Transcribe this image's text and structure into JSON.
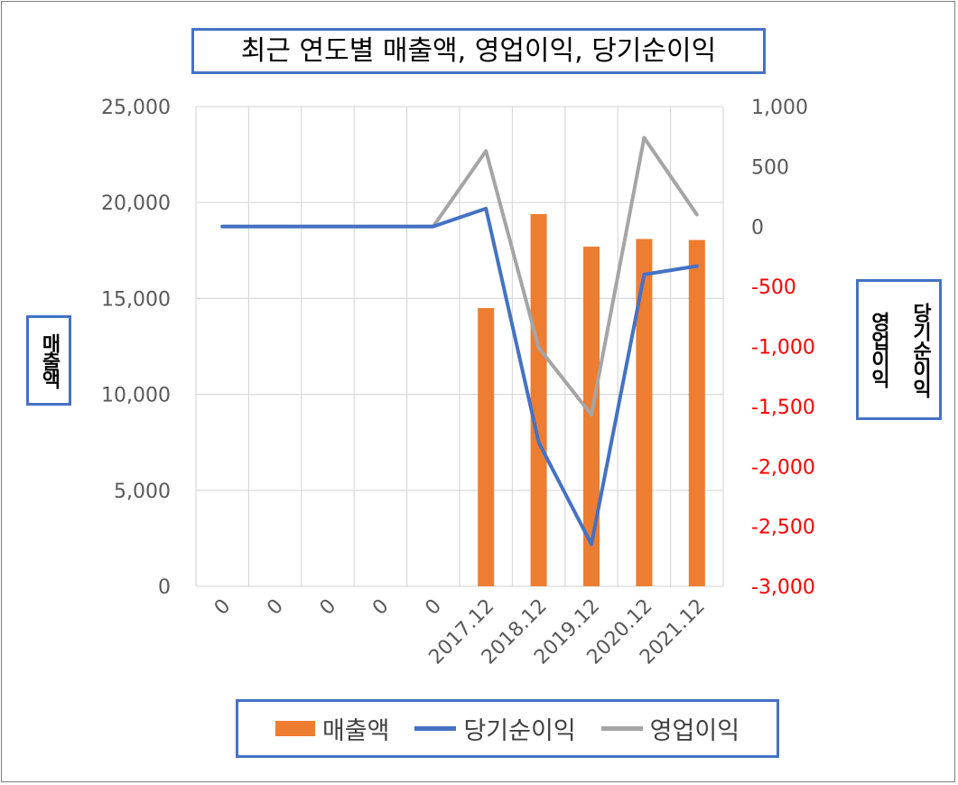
{
  "chart_data": {
    "type": "bar+line",
    "title": "최근 연도별 매출액, 영업이익, 당기순이익",
    "categories": [
      "0",
      "0",
      "0",
      "0",
      "0",
      "2017.12",
      "2018.12",
      "2019.12",
      "2020.12",
      "2021.12"
    ],
    "y_left": {
      "label": "매출액",
      "range": [
        0,
        25000
      ],
      "ticks": [
        0,
        5000,
        10000,
        15000,
        20000,
        25000
      ],
      "tick_labels": [
        "0",
        "5,000",
        "10,000",
        "15,000",
        "20,000",
        "25,000"
      ]
    },
    "y_right": {
      "label_1": "당기순이익",
      "label_2": "영업이익",
      "range": [
        -3000,
        1000
      ],
      "ticks": [
        1000,
        500,
        0,
        -500,
        -1000,
        -1500,
        -2000,
        -2500,
        -3000
      ],
      "tick_labels": [
        "1,000",
        "500",
        "0",
        "-500",
        "-1,000",
        "-1,500",
        "-2,000",
        "-2,500",
        "-3,000"
      ],
      "negative_color": "#ff0000"
    },
    "series": [
      {
        "name": "매출액",
        "kind": "bar",
        "axis": "left",
        "color": "#ed7d31",
        "values": [
          0,
          0,
          0,
          0,
          0,
          14500,
          19400,
          17700,
          18100,
          18050
        ]
      },
      {
        "name": "당기순이익",
        "kind": "line",
        "axis": "right",
        "color": "#4472c4",
        "values": [
          0,
          0,
          0,
          0,
          0,
          150,
          -1800,
          -2650,
          -400,
          -330
        ]
      },
      {
        "name": "영업이익",
        "kind": "line",
        "axis": "right",
        "color": "#a5a5a5",
        "values": [
          0,
          0,
          0,
          0,
          0,
          630,
          -1010,
          -1570,
          740,
          100
        ]
      }
    ],
    "grid": true,
    "legend_position": "bottom"
  }
}
